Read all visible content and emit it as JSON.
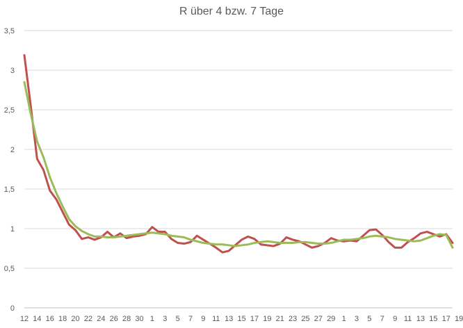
{
  "chart_data": {
    "type": "line",
    "title": "R über 4 bzw. 7 Tage",
    "xlabel": "",
    "ylabel": "",
    "ylim": [
      0,
      3.5
    ],
    "yticks": [
      0,
      0.5,
      1,
      1.5,
      2,
      2.5,
      3,
      3.5
    ],
    "ytick_labels": [
      "0",
      "0,5",
      "1",
      "1,5",
      "2",
      "2,5",
      "3",
      "3,5"
    ],
    "grid": "horizontal",
    "legend": "none",
    "x": [
      12,
      13,
      14,
      15,
      16,
      17,
      18,
      19,
      20,
      21,
      22,
      23,
      24,
      25,
      26,
      27,
      28,
      29,
      30,
      1,
      2,
      3,
      4,
      5,
      6,
      7,
      8,
      9,
      10,
      11,
      12,
      13,
      14,
      15,
      16,
      17,
      18,
      19,
      20,
      21,
      22,
      23,
      24,
      25,
      26,
      27,
      28,
      29,
      30,
      1,
      2,
      3,
      4,
      5,
      6,
      7,
      8,
      9,
      10,
      11,
      12,
      13,
      14,
      15,
      16,
      17,
      18,
      19
    ],
    "xtick_labels": [
      "12",
      "14",
      "16",
      "18",
      "20",
      "22",
      "24",
      "26",
      "28",
      "30",
      "1",
      "3",
      "5",
      "7",
      "9",
      "11",
      "13",
      "15",
      "17",
      "19",
      "21",
      "23",
      "25",
      "27",
      "29",
      "1",
      "3",
      "5",
      "7",
      "9",
      "11",
      "13",
      "15",
      "17",
      "19"
    ],
    "series": [
      {
        "color": "#C0504D",
        "values": [
          3.19,
          2.55,
          1.88,
          1.74,
          1.48,
          1.37,
          1.21,
          1.05,
          0.98,
          0.87,
          0.89,
          0.86,
          0.89,
          0.96,
          0.89,
          0.94,
          0.88,
          0.9,
          0.91,
          0.93,
          1.02,
          0.96,
          0.96,
          0.87,
          0.82,
          0.81,
          0.83,
          0.91,
          0.86,
          0.81,
          0.76,
          0.7,
          0.72,
          0.79,
          0.86,
          0.9,
          0.87,
          0.8,
          0.79,
          0.78,
          0.81,
          0.89,
          0.86,
          0.84,
          0.8,
          0.76,
          0.78,
          0.82,
          0.88,
          0.85,
          0.84,
          0.85,
          0.84,
          0.91,
          0.98,
          0.99,
          0.92,
          0.83,
          0.76,
          0.76,
          0.83,
          0.88,
          0.94,
          0.96,
          0.93,
          0.9,
          0.93,
          0.82
        ]
      },
      {
        "color": "#9BBB59",
        "values": [
          2.85,
          2.45,
          2.1,
          1.9,
          1.65,
          1.45,
          1.28,
          1.12,
          1.03,
          0.97,
          0.93,
          0.9,
          0.9,
          0.89,
          0.89,
          0.9,
          0.91,
          0.92,
          0.93,
          0.94,
          0.95,
          0.94,
          0.93,
          0.91,
          0.9,
          0.89,
          0.86,
          0.84,
          0.82,
          0.81,
          0.8,
          0.8,
          0.79,
          0.78,
          0.79,
          0.8,
          0.82,
          0.83,
          0.84,
          0.83,
          0.82,
          0.82,
          0.82,
          0.83,
          0.83,
          0.82,
          0.81,
          0.81,
          0.82,
          0.84,
          0.86,
          0.86,
          0.87,
          0.88,
          0.9,
          0.91,
          0.9,
          0.89,
          0.87,
          0.86,
          0.85,
          0.84,
          0.85,
          0.88,
          0.91,
          0.93,
          0.92,
          0.76
        ]
      }
    ]
  }
}
